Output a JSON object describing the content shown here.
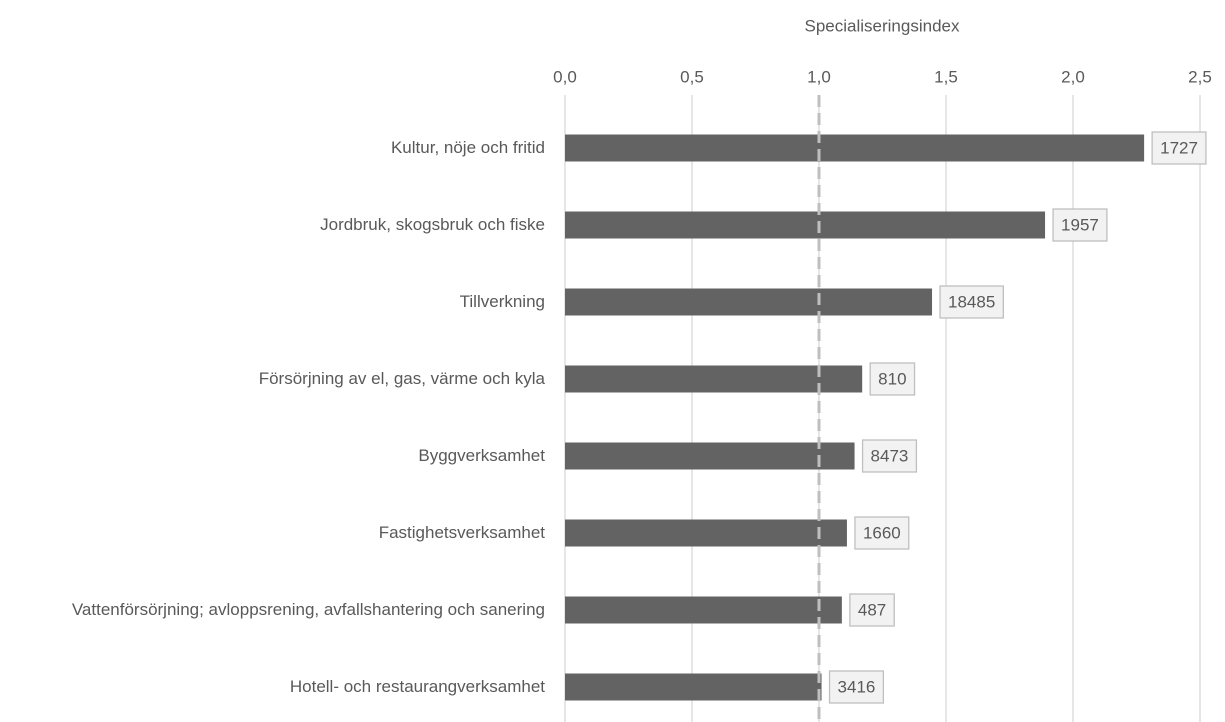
{
  "chart_data": {
    "type": "hbar",
    "x_label": "Specialiseringsindex",
    "categories": [
      "Kultur, nöje och fritid",
      "Jordbruk, skogsbruk och fiske",
      "Tillverkning",
      "Försörjning av el, gas, värme och kyla",
      "Byggverksamhet",
      "Fastighetsverksamhet",
      "Vattenförsörjning; avloppsrening, avfallshantering och sanering",
      "Hotell- och restaurangverksamhet"
    ],
    "values": [
      2.28,
      1.89,
      1.445,
      1.17,
      1.14,
      1.11,
      1.09,
      1.01
    ],
    "bar_labels": [
      1727,
      1957,
      18485,
      810,
      8473,
      1660,
      487,
      3416
    ],
    "color": "#636363",
    "xlim": [
      0,
      2.5
    ],
    "xticks": [
      {
        "value": 0,
        "label": "0,0"
      },
      {
        "value": 0.5,
        "label": "0,5"
      },
      {
        "value": 1,
        "label": "1,0"
      },
      {
        "value": 1.5,
        "label": "1,5"
      },
      {
        "value": 2,
        "label": "2,0"
      },
      {
        "value": 2.5,
        "label": "2,5"
      }
    ],
    "reference_line": 1,
    "grid": true
  }
}
